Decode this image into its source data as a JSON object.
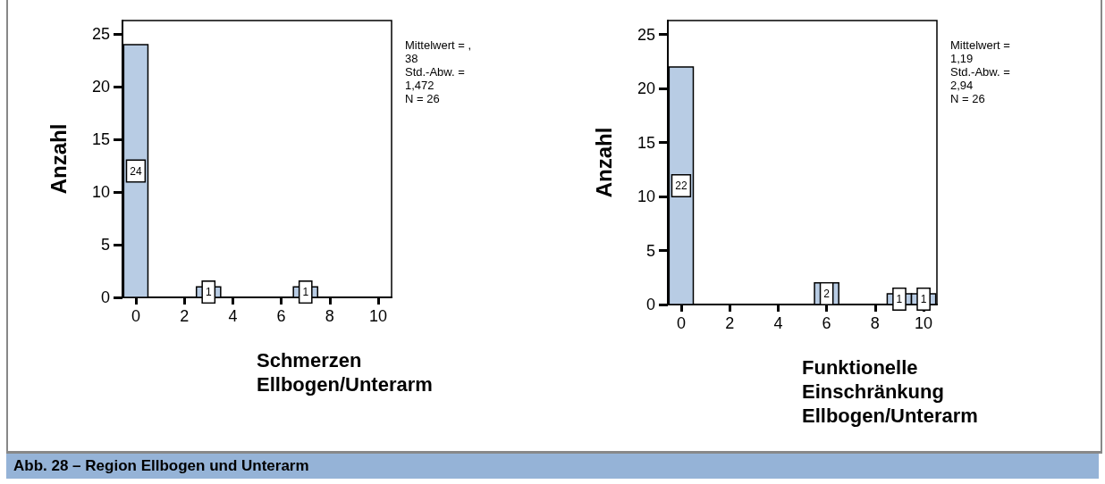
{
  "chart_data": [
    {
      "type": "histogram",
      "bins": [
        -0.5,
        0.5,
        1.5,
        2.5,
        3.5,
        4.5,
        5.5,
        6.5,
        7.5,
        8.5,
        9.5,
        10.5
      ],
      "values": [
        24,
        0,
        0,
        1,
        0,
        0,
        0,
        1,
        0,
        0,
        0
      ],
      "value_labels": [
        "24",
        null,
        null,
        "1",
        null,
        null,
        null,
        "1",
        null,
        null,
        null
      ],
      "color": "#b8cce4",
      "xlim": [
        -0.55,
        10.55
      ],
      "xticks": [
        0,
        2,
        4,
        6,
        8,
        10
      ],
      "ylim": [
        0,
        26.3
      ],
      "yticks": [
        0,
        5,
        10,
        15,
        20,
        25
      ],
      "grid": false,
      "xlabel": "Schmerzen\nEllbogen/Unterarm",
      "ylabel": "Anzahl",
      "annotations": [
        "Mittelwert = ,\n38\nStd.-Abw. =\n1,472\nN = 26",
        "Abb. 28 – Region Ellbogen und Unterarm"
      ]
    },
    {
      "type": "histogram",
      "bins": [
        -0.5,
        0.5,
        1.5,
        2.5,
        3.5,
        4.5,
        5.5,
        6.5,
        7.5,
        8.5,
        9.5,
        10.5
      ],
      "values": [
        22,
        0,
        0,
        0,
        0,
        0,
        2,
        0,
        0,
        1,
        1
      ],
      "value_labels": [
        "22",
        null,
        null,
        null,
        null,
        null,
        "2",
        null,
        null,
        "1",
        "1"
      ],
      "color": "#b8cce4",
      "xlim": [
        -0.55,
        10.55
      ],
      "xticks": [
        0,
        2,
        4,
        6,
        8,
        10
      ],
      "ylim": [
        0,
        26.3
      ],
      "yticks": [
        0,
        5,
        10,
        15,
        20,
        25
      ],
      "grid": false,
      "xlabel": "Funktionelle\nEinschränkung\nEllbogen/Unterarm",
      "ylabel": "Anzahl",
      "annotations": [
        "Mittelwert =\n1,19\nStd.-Abw. =\n2,94\nN = 26"
      ]
    }
  ]
}
